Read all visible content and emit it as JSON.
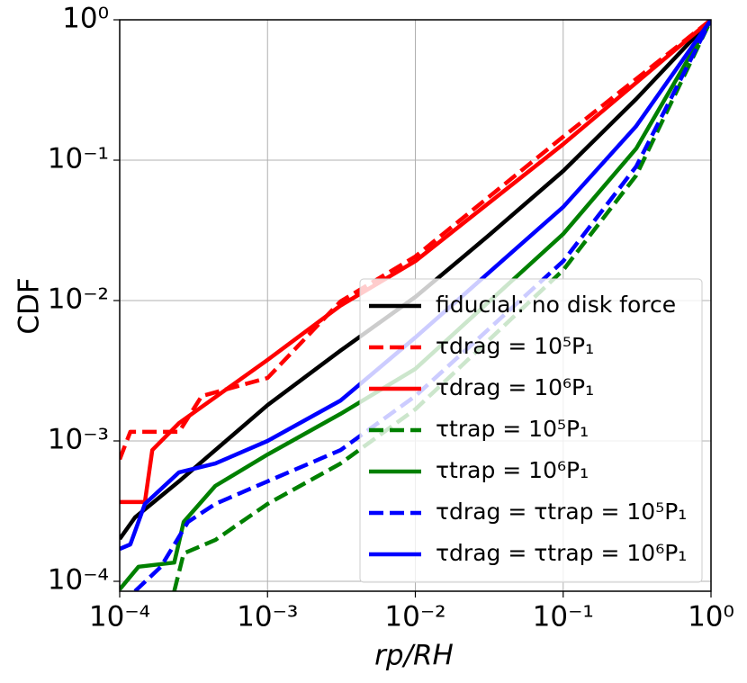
{
  "chart_data": {
    "type": "line",
    "xlabel": "rp/RH",
    "ylabel": "CDF",
    "xscale": "log",
    "yscale": "log",
    "grid": true,
    "legend": "lower right",
    "xlim": [
      0.0001,
      1
    ],
    "ylim": [
      8.5e-05,
      1
    ],
    "xticks": [
      {
        "value": 0.0001,
        "label": "10⁻⁴"
      },
      {
        "value": 0.001,
        "label": "10⁻³"
      },
      {
        "value": 0.01,
        "label": "10⁻²"
      },
      {
        "value": 0.1,
        "label": "10⁻¹"
      },
      {
        "value": 1,
        "label": "10⁰"
      }
    ],
    "yticks": [
      {
        "value": 0.0001,
        "label": "10⁻⁴"
      },
      {
        "value": 0.001,
        "label": "10⁻³"
      },
      {
        "value": 0.01,
        "label": "10⁻²"
      },
      {
        "value": 0.1,
        "label": "10⁻¹"
      },
      {
        "value": 1,
        "label": "10⁰"
      }
    ],
    "series": [
      {
        "name": "fiducial: no disk force",
        "color": "#000000",
        "dashed": false,
        "x": [
          0.0001,
          0.000127,
          0.000252,
          0.001,
          0.00312,
          0.01,
          0.0312,
          0.1,
          0.312,
          1
        ],
        "values": [
          0.0002,
          0.000285,
          0.000515,
          0.0018,
          0.0044,
          0.0106,
          0.029,
          0.0838,
          0.273,
          1
        ]
      },
      {
        "name": "τdrag = 10⁵P₁",
        "color": "#ff0000",
        "dashed": true,
        "x": [
          0.0001,
          0.000118,
          0.000252,
          0.000359,
          0.001,
          0.00312,
          0.01,
          0.1,
          1
        ],
        "values": [
          0.00074,
          0.00116,
          0.00116,
          0.00209,
          0.00281,
          0.00986,
          0.0206,
          0.147,
          1
        ]
      },
      {
        "name": "τdrag = 10⁶P₁",
        "color": "#ff0000",
        "dashed": false,
        "x": [
          0.0001,
          0.000148,
          0.000166,
          0.000252,
          0.001,
          0.00312,
          0.01,
          0.1,
          1
        ],
        "values": [
          0.000367,
          0.000367,
          0.00086,
          0.00134,
          0.00378,
          0.0092,
          0.0191,
          0.13,
          1
        ]
      },
      {
        "name": "τtrap = 10⁵P₁",
        "color": "#008000",
        "dashed": true,
        "x": [
          0.000234,
          0.000271,
          0.000443,
          0.001,
          0.00312,
          0.01,
          0.1,
          0.312,
          1
        ],
        "values": [
          8.5e-05,
          0.000158,
          0.000197,
          0.000356,
          0.00069,
          0.00168,
          0.0165,
          0.0778,
          1
        ]
      },
      {
        "name": "τtrap = 10⁶P₁",
        "color": "#008000",
        "dashed": false,
        "x": [
          0.0001,
          0.000134,
          0.000234,
          0.000271,
          0.000443,
          0.001,
          0.00312,
          0.01,
          0.1,
          0.312,
          1
        ],
        "values": [
          8.75e-05,
          0.000127,
          0.000136,
          0.000265,
          0.000478,
          0.0008,
          0.00156,
          0.00326,
          0.0298,
          0.121,
          1
        ]
      },
      {
        "name": "τdrag = τtrap = 10⁵P₁",
        "color": "#0000ff",
        "dashed": true,
        "x": [
          0.000127,
          0.00019,
          0.00029,
          0.000443,
          0.001,
          0.00312,
          0.01,
          0.1,
          0.312,
          1
        ],
        "values": [
          8.5e-05,
          0.000127,
          0.000265,
          0.000356,
          0.000515,
          0.00086,
          0.00209,
          0.0191,
          0.0902,
          1
        ]
      },
      {
        "name": "τdrag = τtrap = 10⁶P₁",
        "color": "#0000ff",
        "dashed": false,
        "x": [
          0.0001,
          0.000118,
          0.000148,
          0.000252,
          0.000443,
          0.001,
          0.00312,
          0.01,
          0.1,
          0.312,
          1
        ],
        "values": [
          0.00017,
          0.000183,
          0.000356,
          0.000597,
          0.00069,
          0.001,
          0.00194,
          0.00546,
          0.0464,
          0.175,
          1
        ]
      }
    ]
  }
}
